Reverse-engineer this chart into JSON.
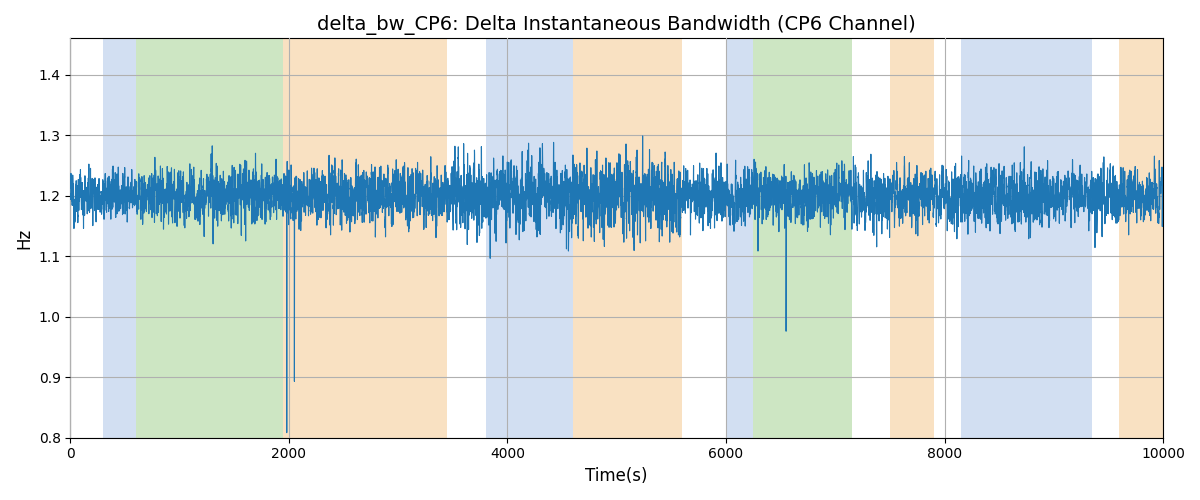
{
  "title": "delta_bw_CP6: Delta Instantaneous Bandwidth (CP6 Channel)",
  "xlabel": "Time(s)",
  "ylabel": "Hz",
  "xlim": [
    0,
    10000
  ],
  "ylim": [
    0.8,
    1.46
  ],
  "yticks": [
    0.8,
    0.9,
    1.0,
    1.1,
    1.2,
    1.3,
    1.4
  ],
  "xticks": [
    0,
    2000,
    4000,
    6000,
    8000,
    10000
  ],
  "line_color": "#1f77b4",
  "line_width": 0.8,
  "grid_color": "#b0b0b0",
  "background_color": "#ffffff",
  "seed": 12345,
  "n_points": 10001,
  "signal_mean": 1.2,
  "signal_std": 0.04,
  "bands": [
    {
      "xmin": 300,
      "xmax": 600,
      "color": "#aec6e8",
      "alpha": 0.55
    },
    {
      "xmin": 600,
      "xmax": 1950,
      "color": "#90c97a",
      "alpha": 0.45
    },
    {
      "xmin": 1950,
      "xmax": 3450,
      "color": "#f5c990",
      "alpha": 0.55
    },
    {
      "xmin": 3450,
      "xmax": 3800,
      "color": "#ffffff",
      "alpha": 1.0
    },
    {
      "xmin": 3800,
      "xmax": 4600,
      "color": "#aec6e8",
      "alpha": 0.55
    },
    {
      "xmin": 4600,
      "xmax": 5600,
      "color": "#f5c990",
      "alpha": 0.55
    },
    {
      "xmin": 5600,
      "xmax": 6000,
      "color": "#ffffff",
      "alpha": 1.0
    },
    {
      "xmin": 6000,
      "xmax": 6250,
      "color": "#aec6e8",
      "alpha": 0.55
    },
    {
      "xmin": 6250,
      "xmax": 7150,
      "color": "#90c97a",
      "alpha": 0.45
    },
    {
      "xmin": 7150,
      "xmax": 7500,
      "color": "#ffffff",
      "alpha": 1.0
    },
    {
      "xmin": 7500,
      "xmax": 7900,
      "color": "#f5c990",
      "alpha": 0.55
    },
    {
      "xmin": 7900,
      "xmax": 8150,
      "color": "#ffffff",
      "alpha": 1.0
    },
    {
      "xmin": 8150,
      "xmax": 9350,
      "color": "#aec6e8",
      "alpha": 0.55
    },
    {
      "xmin": 9350,
      "xmax": 9600,
      "color": "#ffffff",
      "alpha": 1.0
    },
    {
      "xmin": 9600,
      "xmax": 10000,
      "color": "#f5c990",
      "alpha": 0.55
    }
  ],
  "large_dip_times": [
    1980,
    2050,
    6550
  ],
  "large_dip_magnitudes": [
    0.35,
    0.28,
    0.22
  ],
  "title_fontsize": 14,
  "label_fontsize": 12,
  "tick_fontsize": 10,
  "figsize": [
    12,
    5
  ],
  "dpi": 100
}
